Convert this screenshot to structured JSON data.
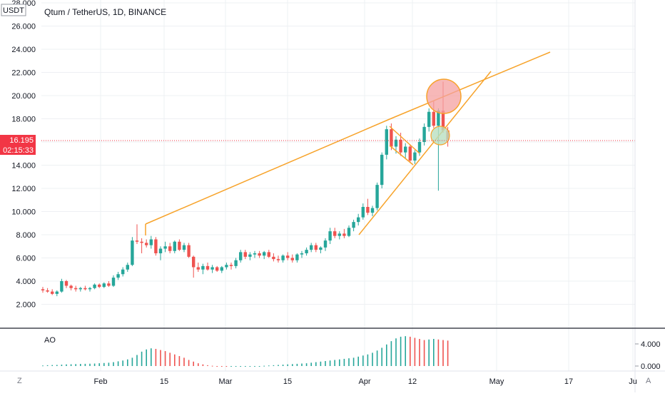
{
  "header": {
    "title": "Qtum / TetherUS, 1D, BINANCE"
  },
  "axis": {
    "unit_label": "USDT"
  },
  "price_axis": {
    "ticks": [
      "28.000",
      "26.000",
      "24.000",
      "22.000",
      "20.000",
      "18.000",
      "16.000",
      "14.000",
      "12.000",
      "10.000",
      "8.000",
      "6.000",
      "4.000",
      "2.000"
    ]
  },
  "current_price": {
    "value": "16.195",
    "countdown": "02:15:33",
    "color": "#f23645"
  },
  "time_axis": {
    "ticks": [
      "Feb",
      "15",
      "Mar",
      "15",
      "Apr",
      "12",
      "May",
      "17",
      "Ju"
    ]
  },
  "oscillator": {
    "name": "AO",
    "ticks": [
      "4.000",
      "0.000"
    ]
  },
  "bottom_bar": {
    "left_button": "Z",
    "right_button": "A"
  },
  "colors": {
    "up": "#26a69a",
    "down": "#ef5350",
    "ao_up": "#26a69a",
    "ao_down": "#ef5350",
    "drawing": "#f7a32a",
    "circle_red": "#f4a0a0",
    "circle_green": "#b9e0c0",
    "price_line": "#f23645",
    "grid": "#eef0f3"
  },
  "chart_data": {
    "type": "candlestick",
    "symbol": "Qtum / TetherUS",
    "interval": "1D",
    "exchange": "BINANCE",
    "ylim": [
      1,
      28
    ],
    "current_price": 16.195,
    "candles": [
      [
        3.3,
        3.5,
        3.0,
        3.2
      ],
      [
        3.2,
        3.4,
        3.0,
        3.1
      ],
      [
        3.1,
        3.3,
        2.8,
        2.9
      ],
      [
        2.9,
        3.2,
        2.7,
        3.1
      ],
      [
        3.1,
        4.2,
        3.0,
        4.0
      ],
      [
        4.0,
        4.1,
        3.4,
        3.6
      ],
      [
        3.6,
        3.7,
        3.2,
        3.4
      ],
      [
        3.4,
        3.6,
        3.1,
        3.3
      ],
      [
        3.3,
        3.5,
        3.1,
        3.4
      ],
      [
        3.4,
        3.6,
        3.2,
        3.3
      ],
      [
        3.3,
        3.5,
        3.1,
        3.4
      ],
      [
        3.4,
        3.8,
        3.3,
        3.7
      ],
      [
        3.7,
        3.8,
        3.4,
        3.5
      ],
      [
        3.5,
        3.9,
        3.4,
        3.8
      ],
      [
        3.8,
        4.0,
        3.5,
        3.6
      ],
      [
        3.6,
        4.5,
        3.5,
        4.3
      ],
      [
        4.3,
        4.8,
        4.1,
        4.6
      ],
      [
        4.6,
        5.2,
        4.4,
        5.0
      ],
      [
        5.0,
        5.6,
        4.8,
        5.4
      ],
      [
        5.4,
        7.8,
        5.3,
        7.5
      ],
      [
        7.5,
        8.9,
        7.2,
        7.4
      ],
      [
        7.4,
        7.7,
        6.4,
        7.3
      ],
      [
        7.3,
        7.6,
        6.9,
        7.1
      ],
      [
        7.1,
        7.9,
        6.8,
        7.6
      ],
      [
        7.6,
        7.8,
        6.2,
        6.4
      ],
      [
        6.4,
        7.0,
        5.8,
        6.8
      ],
      [
        6.8,
        7.4,
        6.5,
        7.0
      ],
      [
        7.0,
        7.3,
        6.4,
        6.6
      ],
      [
        6.6,
        7.5,
        6.4,
        7.4
      ],
      [
        7.4,
        7.6,
        6.6,
        6.7
      ],
      [
        6.7,
        7.3,
        6.5,
        7.1
      ],
      [
        7.1,
        7.3,
        6.0,
        6.1
      ],
      [
        6.1,
        6.2,
        4.3,
        5.2
      ],
      [
        5.2,
        5.6,
        4.8,
        5.0
      ],
      [
        5.0,
        5.5,
        4.6,
        5.3
      ],
      [
        5.3,
        5.6,
        4.9,
        5.0
      ],
      [
        5.0,
        5.4,
        4.7,
        5.2
      ],
      [
        5.2,
        5.3,
        4.8,
        4.9
      ],
      [
        4.9,
        5.3,
        4.7,
        5.2
      ],
      [
        5.2,
        5.6,
        5.0,
        5.4
      ],
      [
        5.4,
        5.6,
        5.0,
        5.3
      ],
      [
        5.3,
        6.0,
        5.1,
        5.8
      ],
      [
        5.8,
        6.7,
        5.6,
        6.5
      ],
      [
        6.5,
        6.7,
        5.9,
        6.1
      ],
      [
        6.1,
        6.5,
        5.8,
        6.3
      ],
      [
        6.3,
        6.6,
        6.0,
        6.4
      ],
      [
        6.4,
        6.6,
        6.0,
        6.2
      ],
      [
        6.2,
        6.6,
        5.9,
        6.5
      ],
      [
        6.5,
        6.7,
        6.0,
        6.1
      ],
      [
        6.1,
        6.4,
        5.7,
        5.9
      ],
      [
        5.9,
        6.2,
        5.6,
        5.8
      ],
      [
        5.8,
        6.3,
        5.6,
        6.2
      ],
      [
        6.2,
        6.5,
        5.8,
        6.0
      ],
      [
        6.0,
        6.3,
        5.6,
        5.8
      ],
      [
        5.8,
        6.4,
        5.6,
        6.3
      ],
      [
        6.3,
        6.6,
        6.0,
        6.4
      ],
      [
        6.4,
        6.9,
        6.2,
        6.7
      ],
      [
        6.7,
        7.3,
        6.5,
        7.1
      ],
      [
        7.1,
        7.3,
        6.5,
        6.7
      ],
      [
        6.7,
        7.0,
        6.4,
        6.9
      ],
      [
        6.9,
        7.7,
        6.6,
        7.5
      ],
      [
        7.5,
        8.6,
        7.2,
        8.3
      ],
      [
        8.3,
        8.6,
        7.7,
        7.9
      ],
      [
        7.9,
        8.3,
        7.6,
        8.1
      ],
      [
        8.1,
        8.5,
        7.7,
        7.9
      ],
      [
        7.9,
        8.8,
        7.8,
        8.6
      ],
      [
        8.6,
        9.3,
        8.3,
        9.1
      ],
      [
        9.1,
        9.8,
        8.8,
        9.5
      ],
      [
        9.5,
        10.7,
        9.3,
        10.4
      ],
      [
        10.4,
        11.1,
        9.7,
        9.9
      ],
      [
        9.9,
        10.5,
        9.6,
        10.3
      ],
      [
        10.3,
        12.5,
        10.1,
        12.3
      ],
      [
        12.3,
        15.1,
        12.0,
        14.9
      ],
      [
        14.9,
        17.4,
        14.5,
        17.1
      ],
      [
        17.1,
        17.6,
        15.3,
        15.6
      ],
      [
        15.6,
        16.5,
        15.0,
        16.2
      ],
      [
        16.2,
        16.8,
        14.8,
        15.1
      ],
      [
        15.1,
        15.9,
        14.6,
        15.6
      ],
      [
        15.6,
        15.8,
        14.2,
        14.4
      ],
      [
        14.4,
        15.3,
        14.1,
        15.1
      ],
      [
        15.1,
        16.3,
        14.8,
        16.0
      ],
      [
        16.0,
        17.6,
        15.7,
        17.3
      ],
      [
        17.3,
        18.9,
        16.9,
        18.6
      ],
      [
        18.6,
        19.5,
        17.2,
        17.4
      ],
      [
        17.4,
        18.9,
        11.8,
        18.7
      ],
      [
        18.7,
        21.2,
        16.8,
        17.0
      ],
      [
        17.0,
        17.3,
        15.6,
        16.2
      ]
    ],
    "ao_values": [
      0.1,
      0.15,
      0.18,
      0.2,
      0.25,
      0.3,
      0.32,
      0.35,
      0.38,
      0.4,
      0.42,
      0.45,
      0.5,
      0.55,
      0.6,
      0.7,
      0.85,
      1.0,
      1.2,
      1.5,
      2.0,
      2.6,
      3.0,
      3.2,
      3.1,
      2.9,
      2.7,
      2.4,
      2.1,
      1.8,
      1.5,
      1.1,
      0.8,
      0.5,
      0.3,
      0.15,
      0.05,
      -0.05,
      -0.08,
      -0.1,
      -0.1,
      -0.09,
      -0.08,
      -0.06,
      -0.05,
      -0.03,
      0.0,
      0.05,
      0.1,
      0.15,
      0.2,
      0.25,
      0.3,
      0.35,
      0.4,
      0.45,
      0.5,
      0.6,
      0.7,
      0.8,
      0.9,
      1.0,
      1.1,
      1.2,
      1.3,
      1.4,
      1.5,
      1.7,
      1.9,
      2.1,
      2.4,
      2.8,
      3.3,
      3.9,
      4.5,
      5.0,
      5.3,
      5.4,
      5.3,
      5.1,
      4.9,
      4.7,
      4.8,
      4.9,
      4.8,
      4.7,
      4.6
    ]
  }
}
